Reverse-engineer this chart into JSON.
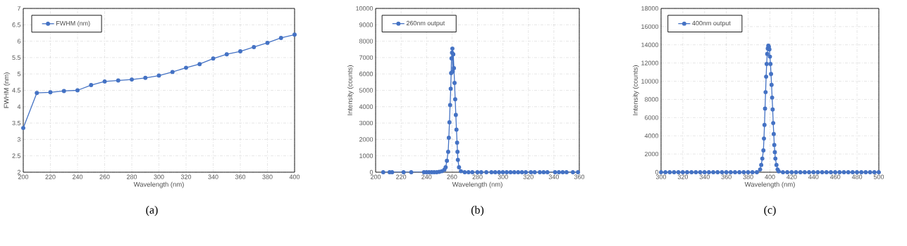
{
  "chart_data": [
    {
      "type": "line",
      "xlabel": "Wavelength (nm)",
      "ylabel": "FWHM (nm)",
      "annotations": [
        "(a)"
      ],
      "legend": "top left",
      "grid": true,
      "marker": "circle",
      "line_style": "solid",
      "xlim": [
        200,
        400
      ],
      "ylim": [
        2,
        7
      ],
      "xticks": [
        200,
        220,
        240,
        260,
        280,
        300,
        320,
        340,
        360,
        380,
        400
      ],
      "yticks": [
        2,
        2.5,
        3,
        3.5,
        4,
        4.5,
        5,
        5.5,
        6,
        6.5,
        7
      ],
      "series": [
        {
          "name": "FWHM (nm)",
          "color": "#4472c4",
          "x": [
            200,
            210,
            220,
            230,
            240,
            250,
            260,
            270,
            280,
            290,
            300,
            310,
            320,
            330,
            340,
            350,
            360,
            370,
            380,
            390,
            400
          ],
          "values": [
            3.35,
            4.42,
            4.44,
            4.48,
            4.5,
            4.66,
            4.77,
            4.8,
            4.83,
            4.88,
            4.95,
            5.06,
            5.19,
            5.3,
            5.47,
            5.6,
            5.69,
            5.82,
            5.95,
            6.1,
            6.2
          ]
        }
      ]
    },
    {
      "type": "line",
      "xlabel": "Wavelength (nm)",
      "ylabel": "Intensity (counts)",
      "annotations": [
        "(b)"
      ],
      "legend": "top left",
      "grid": true,
      "marker": "circle",
      "line_style": "solid",
      "xlim": [
        200,
        360
      ],
      "ylim": [
        0,
        10000
      ],
      "xticks": [
        200,
        220,
        240,
        260,
        280,
        300,
        320,
        340,
        360
      ],
      "yticks": [
        0,
        1000,
        2000,
        3000,
        4000,
        5000,
        6000,
        7000,
        8000,
        9000,
        10000
      ],
      "series": [
        {
          "name": "260nm output",
          "color": "#4472c4",
          "x": [
            206,
            211,
            213,
            222,
            228,
            238,
            240,
            242,
            244,
            246,
            248,
            250,
            252,
            254,
            255,
            256,
            257,
            257.5,
            258,
            258.5,
            259,
            259.3,
            259.6,
            260,
            260.3,
            260.6,
            261,
            261.5,
            262,
            262.5,
            263,
            263.5,
            264,
            264.3,
            264.6,
            265.5,
            267,
            270,
            273,
            276,
            280,
            283,
            287,
            291,
            294,
            297,
            300,
            303,
            306,
            309,
            312,
            315,
            318,
            322,
            325,
            329,
            332,
            335,
            341,
            344,
            347,
            350,
            355,
            359
          ],
          "values": [
            0,
            0,
            0,
            0,
            0,
            0,
            0,
            0,
            0,
            0,
            0,
            20,
            60,
            150,
            300,
            700,
            1250,
            2100,
            3050,
            4100,
            5100,
            6050,
            6950,
            7300,
            7550,
            6150,
            7200,
            6350,
            5450,
            4450,
            3500,
            2600,
            1800,
            1250,
            750,
            300,
            60,
            0,
            0,
            0,
            0,
            0,
            0,
            0,
            0,
            0,
            0,
            0,
            0,
            0,
            0,
            0,
            0,
            0,
            0,
            0,
            0,
            0,
            0,
            0,
            0,
            0,
            0,
            0
          ]
        }
      ]
    },
    {
      "type": "line",
      "xlabel": "Wavelength (nm)",
      "ylabel": "Intensity (counts)",
      "annotations": [
        "(c)"
      ],
      "legend": "top left",
      "grid": true,
      "marker": "circle",
      "line_style": "solid",
      "xlim": [
        300,
        500
      ],
      "ylim": [
        0,
        18000
      ],
      "xticks": [
        300,
        320,
        340,
        360,
        380,
        400,
        420,
        440,
        460,
        480,
        500
      ],
      "yticks": [
        0,
        2000,
        4000,
        6000,
        8000,
        10000,
        12000,
        14000,
        16000,
        18000
      ],
      "series": [
        {
          "name": "400nm output",
          "color": "#4472c4",
          "x": [
            300,
            304,
            308,
            312,
            316,
            320,
            324,
            328,
            332,
            336,
            340,
            344,
            348,
            352,
            356,
            360,
            364,
            368,
            372,
            376,
            380,
            384,
            388,
            391,
            392,
            393,
            394,
            394.5,
            395,
            395.5,
            396,
            396.5,
            397,
            397.5,
            398,
            398.5,
            399,
            399.5,
            400,
            400.5,
            401,
            401.5,
            402,
            402.5,
            403,
            403.5,
            404,
            404.5,
            405,
            406,
            407,
            408,
            412,
            416,
            420,
            424,
            428,
            432,
            436,
            440,
            444,
            448,
            452,
            456,
            460,
            464,
            468,
            472,
            476,
            480,
            484,
            488,
            492,
            496,
            500
          ],
          "values": [
            0,
            0,
            0,
            0,
            0,
            0,
            0,
            0,
            0,
            0,
            0,
            0,
            0,
            0,
            0,
            0,
            0,
            0,
            0,
            0,
            0,
            0,
            0,
            300,
            800,
            1500,
            2400,
            3700,
            5200,
            7000,
            8800,
            10500,
            11900,
            13000,
            13600,
            13900,
            13800,
            13500,
            12700,
            11900,
            10800,
            9600,
            8200,
            6900,
            5400,
            4200,
            3000,
            2200,
            1500,
            800,
            300,
            100,
            0,
            0,
            0,
            0,
            0,
            0,
            0,
            0,
            0,
            0,
            0,
            0,
            0,
            0,
            0,
            0,
            0,
            0,
            0,
            0,
            0,
            0,
            0
          ]
        }
      ]
    }
  ]
}
